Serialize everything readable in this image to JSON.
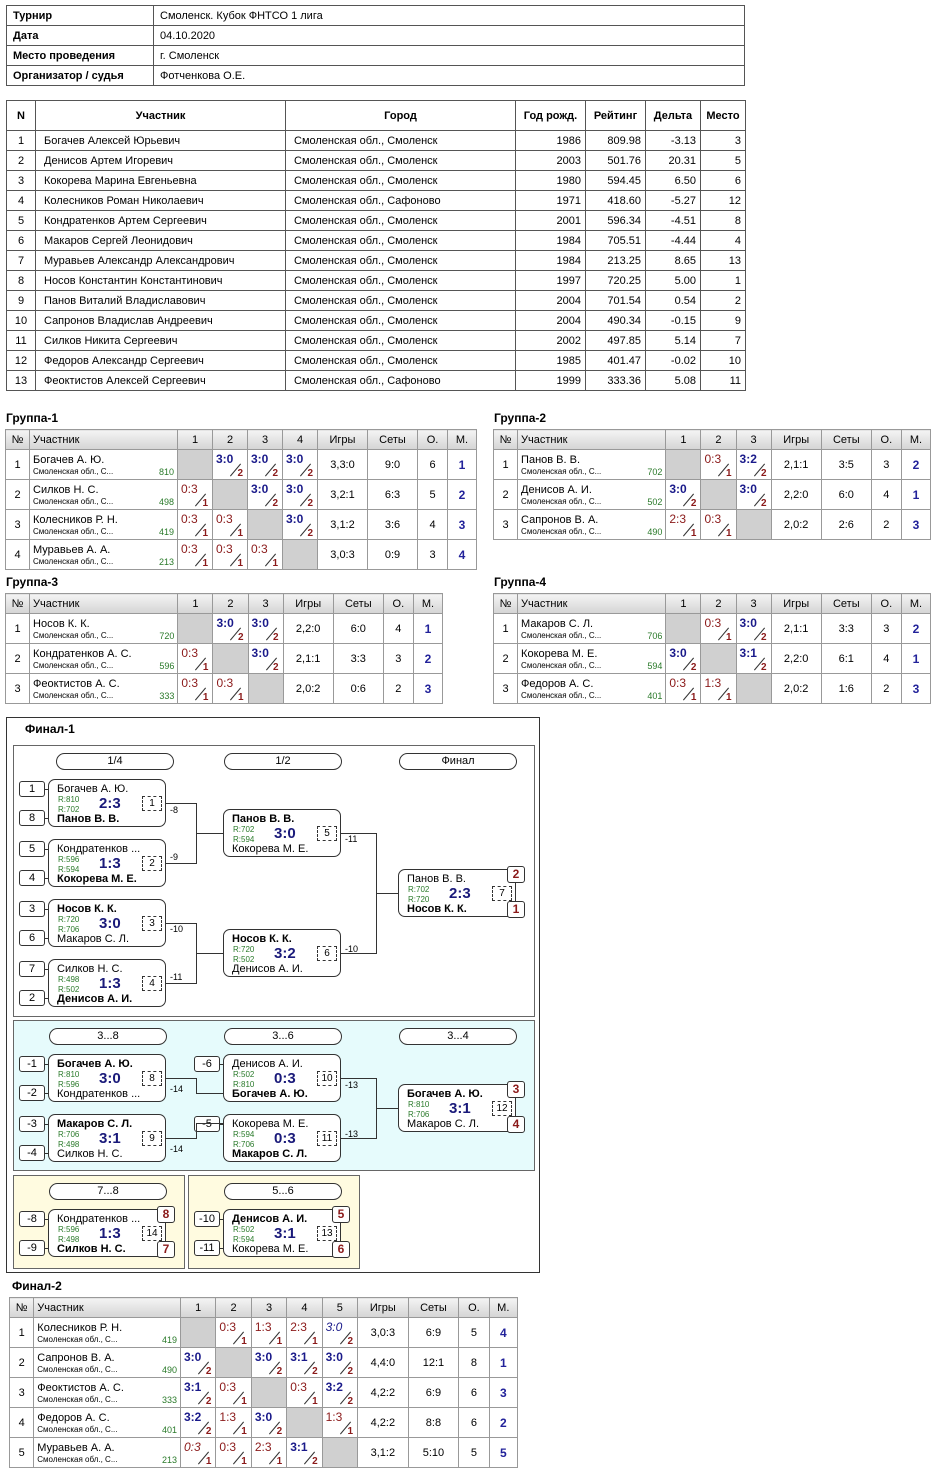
{
  "info": {
    "tournament_k": "Турнир",
    "tournament": "Смоленск. Кубок ФНТСО 1 лига",
    "date_k": "Дата",
    "date": "04.10.2020",
    "place_k": "Место проведения",
    "place": "г. Смоленск",
    "org_k": "Организатор / судья",
    "org": "Фотченкова О.Е."
  },
  "participants": {
    "headers": [
      "N",
      "Участник",
      "Город",
      "Год рожд.",
      "Рейтинг",
      "Дельта",
      "Место"
    ],
    "rows": [
      [
        "1",
        "Богачев Алексей Юрьевич",
        "Смоленская обл., Смоленск",
        "1986",
        "809.98",
        "-3.13",
        "3"
      ],
      [
        "2",
        "Денисов Артем Игоревич",
        "Смоленская обл., Смоленск",
        "2003",
        "501.76",
        "20.31",
        "5"
      ],
      [
        "3",
        "Кокорева Марина Евгеньевна",
        "Смоленская обл., Смоленск",
        "1980",
        "594.45",
        "6.50",
        "6"
      ],
      [
        "4",
        "Колесников Роман Николаевич",
        "Смоленская обл., Сафоново",
        "1971",
        "418.60",
        "-5.27",
        "12"
      ],
      [
        "5",
        "Кондратенков Артем Сергеевич",
        "Смоленская обл., Смоленск",
        "2001",
        "596.34",
        "-4.51",
        "8"
      ],
      [
        "6",
        "Макаров Сергей Леонидович",
        "Смоленская обл., Смоленск",
        "1984",
        "705.51",
        "-4.44",
        "4"
      ],
      [
        "7",
        "Муравьев Александр Александрович",
        "Смоленская обл., Смоленск",
        "1984",
        "213.25",
        "8.65",
        "13"
      ],
      [
        "8",
        "Носов Константин Константинович",
        "Смоленская обл., Смоленск",
        "1997",
        "720.25",
        "5.00",
        "1"
      ],
      [
        "9",
        "Панов Виталий Владиславович",
        "Смоленская обл., Смоленск",
        "2004",
        "701.54",
        "0.54",
        "2"
      ],
      [
        "10",
        "Сапронов Владислав Андреевич",
        "Смоленская обл., Смоленск",
        "2004",
        "490.34",
        "-0.15",
        "9"
      ],
      [
        "11",
        "Силков Никита Сергеевич",
        "Смоленская обл., Смоленск",
        "2002",
        "497.85",
        "5.14",
        "7"
      ],
      [
        "12",
        "Федоров Александр Сергеевич",
        "Смоленская обл., Смоленск",
        "1985",
        "401.47",
        "-0.02",
        "10"
      ],
      [
        "13",
        "Феоктистов Алексей Сергеевич",
        "Смоленская обл., Сафоново",
        "1999",
        "333.36",
        "5.08",
        "11"
      ]
    ]
  },
  "groups": [
    {
      "title": "Группа-1",
      "cols": [
        "№",
        "Участник",
        "1",
        "2",
        "3",
        "4",
        "Игры",
        "Сеты",
        "О.",
        "М."
      ],
      "rows": [
        {
          "n": "1",
          "name": "Богачев А. Ю.",
          "city": "Смоленская обл., С...",
          "rt": "810",
          "res": [
            null,
            [
              "3:0",
              "w",
              "2"
            ],
            [
              "3:0",
              "w",
              "2"
            ],
            [
              "3:0",
              "w",
              "2"
            ]
          ],
          "games": "3,3:0",
          "sets": "9:0",
          "pts": "6",
          "place": "1"
        },
        {
          "n": "2",
          "name": "Силков Н. С.",
          "city": "Смоленская обл., С...",
          "rt": "498",
          "res": [
            [
              "0:3",
              "lo",
              "1"
            ],
            null,
            [
              "3:0",
              "w",
              "2"
            ],
            [
              "3:0",
              "w",
              "2"
            ]
          ],
          "games": "3,2:1",
          "sets": "6:3",
          "pts": "5",
          "place": "2"
        },
        {
          "n": "3",
          "name": "Колесников Р. Н.",
          "city": "Смоленская обл., С...",
          "rt": "419",
          "res": [
            [
              "0:3",
              "lo",
              "1"
            ],
            [
              "0:3",
              "lo",
              "1"
            ],
            null,
            [
              "3:0",
              "w",
              "2"
            ]
          ],
          "games": "3,1:2",
          "sets": "3:6",
          "pts": "4",
          "place": "3"
        },
        {
          "n": "4",
          "name": "Муравьев А. А.",
          "city": "Смоленская обл., С...",
          "rt": "213",
          "res": [
            [
              "0:3",
              "lo",
              "1"
            ],
            [
              "0:3",
              "lo",
              "1"
            ],
            [
              "0:3",
              "lo",
              "1"
            ],
            null
          ],
          "games": "3,0:3",
          "sets": "0:9",
          "pts": "3",
          "place": "4"
        }
      ]
    },
    {
      "title": "Группа-2",
      "cols": [
        "№",
        "Участник",
        "1",
        "2",
        "3",
        "Игры",
        "Сеты",
        "О.",
        "М."
      ],
      "rows": [
        {
          "n": "1",
          "name": "Панов В. В.",
          "city": "Смоленская обл., С...",
          "rt": "702",
          "res": [
            null,
            [
              "0:3",
              "lo",
              "1"
            ],
            [
              "3:2",
              "w",
              "2"
            ]
          ],
          "games": "2,1:1",
          "sets": "3:5",
          "pts": "3",
          "place": "2"
        },
        {
          "n": "2",
          "name": "Денисов А. И.",
          "city": "Смоленская обл., С...",
          "rt": "502",
          "res": [
            [
              "3:0",
              "w",
              "2"
            ],
            null,
            [
              "3:0",
              "w",
              "2"
            ]
          ],
          "games": "2,2:0",
          "sets": "6:0",
          "pts": "4",
          "place": "1"
        },
        {
          "n": "3",
          "name": "Сапронов В. А.",
          "city": "Смоленская обл., С...",
          "rt": "490",
          "res": [
            [
              "2:3",
              "lo",
              "1"
            ],
            [
              "0:3",
              "lo",
              "1"
            ],
            null
          ],
          "games": "2,0:2",
          "sets": "2:6",
          "pts": "2",
          "place": "3"
        }
      ]
    },
    {
      "title": "Группа-3",
      "cols": [
        "№",
        "Участник",
        "1",
        "2",
        "3",
        "Игры",
        "Сеты",
        "О.",
        "М."
      ],
      "rows": [
        {
          "n": "1",
          "name": "Носов К. К.",
          "city": "Смоленская обл., С...",
          "rt": "720",
          "res": [
            null,
            [
              "3:0",
              "w",
              "2"
            ],
            [
              "3:0",
              "w",
              "2"
            ]
          ],
          "games": "2,2:0",
          "sets": "6:0",
          "pts": "4",
          "place": "1"
        },
        {
          "n": "2",
          "name": "Кондратенков А. С.",
          "city": "Смоленская обл., С...",
          "rt": "596",
          "res": [
            [
              "0:3",
              "lo",
              "1"
            ],
            null,
            [
              "3:0",
              "w",
              "2"
            ]
          ],
          "games": "2,1:1",
          "sets": "3:3",
          "pts": "3",
          "place": "2"
        },
        {
          "n": "3",
          "name": "Феоктистов А. С.",
          "city": "Смоленская обл., С...",
          "rt": "333",
          "res": [
            [
              "0:3",
              "lo",
              "1"
            ],
            [
              "0:3",
              "lo",
              "1"
            ],
            null
          ],
          "games": "2,0:2",
          "sets": "0:6",
          "pts": "2",
          "place": "3"
        }
      ]
    },
    {
      "title": "Группа-4",
      "cols": [
        "№",
        "Участник",
        "1",
        "2",
        "3",
        "Игры",
        "Сеты",
        "О.",
        "М."
      ],
      "rows": [
        {
          "n": "1",
          "name": "Макаров С. Л.",
          "city": "Смоленская обл., С...",
          "rt": "706",
          "res": [
            null,
            [
              "0:3",
              "lo",
              "1"
            ],
            [
              "3:0",
              "w",
              "2"
            ]
          ],
          "games": "2,1:1",
          "sets": "3:3",
          "pts": "3",
          "place": "2"
        },
        {
          "n": "2",
          "name": "Кокорева М. Е.",
          "city": "Смоленская обл., С...",
          "rt": "594",
          "res": [
            [
              "3:0",
              "w",
              "2"
            ],
            null,
            [
              "3:1",
              "w",
              "2"
            ]
          ],
          "games": "2,2:0",
          "sets": "6:1",
          "pts": "4",
          "place": "1"
        },
        {
          "n": "3",
          "name": "Федоров А. С.",
          "city": "Смоленская обл., С...",
          "rt": "401",
          "res": [
            [
              "0:3",
              "lo",
              "1"
            ],
            [
              "1:3",
              "lo",
              "1"
            ],
            null
          ],
          "games": "2,0:2",
          "sets": "1:6",
          "pts": "2",
          "place": "3"
        }
      ]
    },
    {
      "title": "Финал-2",
      "cols": [
        "№",
        "Участник",
        "1",
        "2",
        "3",
        "4",
        "5",
        "Игры",
        "Сеты",
        "О.",
        "М."
      ],
      "rows": [
        {
          "n": "1",
          "name": "Колесников Р. Н.",
          "city": "Смоленская обл., С...",
          "rt": "419",
          "res": [
            null,
            [
              "0:3",
              "lo",
              "1"
            ],
            [
              "1:3",
              "lo",
              "1"
            ],
            [
              "2:3",
              "lo",
              "1"
            ],
            [
              "3:0",
              "it",
              "2"
            ]
          ],
          "games": "3,0:3",
          "sets": "6:9",
          "pts": "5",
          "place": "4"
        },
        {
          "n": "2",
          "name": "Сапронов В. А.",
          "city": "Смоленская обл., С...",
          "rt": "490",
          "res": [
            [
              "3:0",
              "w",
              "2"
            ],
            null,
            [
              "3:0",
              "w",
              "2"
            ],
            [
              "3:1",
              "w",
              "2"
            ],
            [
              "3:0",
              "w",
              "2"
            ]
          ],
          "games": "4,4:0",
          "sets": "12:1",
          "pts": "8",
          "place": "1"
        },
        {
          "n": "3",
          "name": "Феоктистов А. С.",
          "city": "Смоленская обл., С...",
          "rt": "333",
          "res": [
            [
              "3:1",
              "w",
              "2"
            ],
            [
              "0:3",
              "lo",
              "1"
            ],
            null,
            [
              "0:3",
              "lo",
              "1"
            ],
            [
              "3:2",
              "w",
              "2"
            ]
          ],
          "games": "4,2:2",
          "sets": "6:9",
          "pts": "6",
          "place": "3"
        },
        {
          "n": "4",
          "name": "Федоров А. С.",
          "city": "Смоленская обл., С...",
          "rt": "401",
          "res": [
            [
              "3:2",
              "w",
              "2"
            ],
            [
              "1:3",
              "lo",
              "1"
            ],
            [
              "3:0",
              "w",
              "2"
            ],
            null,
            [
              "1:3",
              "lo",
              "1"
            ]
          ],
          "games": "4,2:2",
          "sets": "8:8",
          "pts": "6",
          "place": "2"
        },
        {
          "n": "5",
          "name": "Муравьев А. А.",
          "city": "Смоленская обл., С...",
          "rt": "213",
          "res": [
            [
              "0:3",
              "it",
              "1"
            ],
            [
              "0:3",
              "lo",
              "1"
            ],
            [
              "2:3",
              "lo",
              "1"
            ],
            [
              "3:1",
              "w",
              "2"
            ],
            null
          ],
          "games": "3,1:2",
          "sets": "5:10",
          "pts": "5",
          "place": "5"
        }
      ]
    }
  ],
  "final1": {
    "title": "Финал-1",
    "stages": [
      "1/4",
      "1/2",
      "Финал",
      "3...8",
      "3...6",
      "3...4",
      "7...8",
      "5...6"
    ],
    "matches": [
      {
        "p1": "Богачев А. Ю.",
        "p1b": false,
        "p2": "Панов В. В.",
        "p2b": true,
        "r1": "R:810",
        "r2": "R:702",
        "sc": "2:3",
        "mn": "1",
        "s1": "1",
        "s2": "8"
      },
      {
        "p1": "Кондратенков ...",
        "p1b": false,
        "p2": "Кокорева М. Е.",
        "p2b": true,
        "r1": "R:596",
        "r2": "R:594",
        "sc": "1:3",
        "mn": "2",
        "s1": "5",
        "s2": "4"
      },
      {
        "p1": "Носов К. К.",
        "p1b": true,
        "p2": "Макаров С. Л.",
        "p2b": false,
        "r1": "R:720",
        "r2": "R:706",
        "sc": "3:0",
        "mn": "3",
        "s1": "3",
        "s2": "6"
      },
      {
        "p1": "Силков Н. С.",
        "p1b": false,
        "p2": "Денисов А. И.",
        "p2b": true,
        "r1": "R:498",
        "r2": "R:502",
        "sc": "1:3",
        "mn": "4",
        "s1": "7",
        "s2": "2"
      },
      {
        "p1": "Панов В. В.",
        "p1b": true,
        "p2": "Кокорева М. Е.",
        "p2b": false,
        "r1": "R:702",
        "r2": "R:594",
        "sc": "3:0",
        "mn": "5",
        "lbl": "-11"
      },
      {
        "p1": "Носов К. К.",
        "p1b": true,
        "p2": "Денисов А. И.",
        "p2b": false,
        "r1": "R:720",
        "r2": "R:502",
        "sc": "3:2",
        "mn": "6",
        "lbl": "-10"
      },
      {
        "p1": "Панов В. В.",
        "p1b": false,
        "p2": "Носов К. К.",
        "p2b": true,
        "r1": "R:702",
        "r2": "R:720",
        "sc": "2:3",
        "mn": "7",
        "pl1": "2",
        "pl2": "1"
      },
      {
        "p1": "Богачев А. Ю.",
        "p1b": true,
        "p2": "Кондратенков ...",
        "p2b": false,
        "r1": "R:810",
        "r2": "R:596",
        "sc": "3:0",
        "mn": "8",
        "s1": "-1",
        "s2": "-2",
        "lbl": "-14"
      },
      {
        "p1": "Макаров С. Л.",
        "p1b": true,
        "p2": "Силков Н. С.",
        "p2b": false,
        "r1": "R:706",
        "r2": "R:498",
        "sc": "3:1",
        "mn": "9",
        "s1": "-3",
        "s2": "-4",
        "lbl": "-14"
      },
      {
        "p1": "Денисов А. И.",
        "p1b": false,
        "p2": "Богачев А. Ю.",
        "p2b": true,
        "r1": "R:502",
        "r2": "R:810",
        "sc": "0:3",
        "mn": "10",
        "s1": "-6",
        "lbl": "-13"
      },
      {
        "p1": "Кокорева М. Е.",
        "p1b": false,
        "p2": "Макаров С. Л.",
        "p2b": true,
        "r1": "R:594",
        "r2": "R:706",
        "sc": "0:3",
        "mn": "11",
        "s1": "-5",
        "lbl": "-13"
      },
      {
        "p1": "Богачев А. Ю.",
        "p1b": true,
        "p2": "Макаров С. Л.",
        "p2b": false,
        "r1": "R:810",
        "r2": "R:706",
        "sc": "3:1",
        "mn": "12",
        "pl1": "3",
        "pl2": "4"
      },
      {
        "p1": "Кондратенков ...",
        "p1b": false,
        "p2": "Силков Н. С.",
        "p2b": true,
        "r1": "R:596",
        "r2": "R:498",
        "sc": "1:3",
        "mn": "14",
        "s1": "-8",
        "s2": "-9",
        "pl1": "8",
        "pl2": "7"
      },
      {
        "p1": "Денисов А. И.",
        "p1b": true,
        "p2": "Кокорева М. Е.",
        "p2b": false,
        "r1": "R:502",
        "r2": "R:594",
        "sc": "3:1",
        "mn": "13",
        "s1": "-10",
        "s2": "-11",
        "pl1": "5",
        "pl2": "6"
      }
    ]
  },
  "colors": {
    "win": "#1a1a8a",
    "loss": "#8b1a1a",
    "rating": "#2a7a2a",
    "cyan_panel": "#e6fbfc",
    "yellow_panel": "#fffbe0"
  }
}
